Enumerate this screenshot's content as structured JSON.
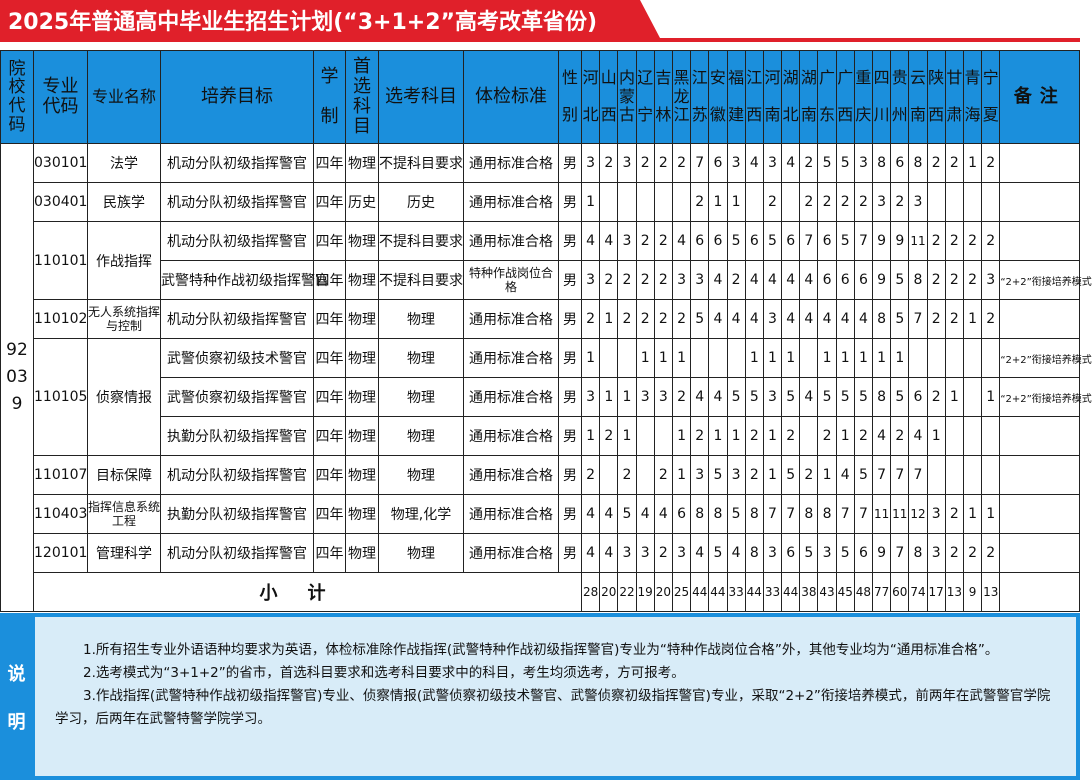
{
  "title": "2025年普通高中毕业生招生计划(“3+1+2”高考改革省份)",
  "colors": {
    "title_red": "#e0202a",
    "header_blue": "#1b8fdc",
    "footer_bg": "#d8ecf8"
  },
  "headers": {
    "school_code": "院校代码",
    "major_code": "专业代码",
    "major_name": "专业名称",
    "goal": "培养目标",
    "years": "学制",
    "first_subject": "首选科目",
    "elective": "选考科目",
    "physical": "体检标准",
    "gender": "性别",
    "provinces": [
      "河北",
      "山西",
      "内蒙古",
      "辽宁",
      "吉林",
      "黑龙江",
      "江苏",
      "安徽",
      "福建",
      "江西",
      "河南",
      "湖北",
      "湖南",
      "广东",
      "广西",
      "重庆",
      "四川",
      "贵州",
      "云南",
      "陕西",
      "甘肃",
      "青海",
      "宁夏"
    ],
    "remark": "备注"
  },
  "school_code": "92039",
  "rows": [
    {
      "code": "030101",
      "name": "法学",
      "span": 1,
      "goal": "机动分队初级指挥警官",
      "years": "四年",
      "first": "物理",
      "elective": "不提科目要求",
      "physical": "通用标准合格",
      "gender": "男",
      "values": [
        "3",
        "2",
        "3",
        "2",
        "2",
        "2",
        "7",
        "6",
        "3",
        "4",
        "3",
        "4",
        "2",
        "5",
        "5",
        "3",
        "8",
        "6",
        "8",
        "2",
        "2",
        "1",
        "2"
      ],
      "remark": ""
    },
    {
      "code": "030401",
      "name": "民族学",
      "span": 1,
      "goal": "机动分队初级指挥警官",
      "years": "四年",
      "first": "历史",
      "elective": "历史",
      "physical": "通用标准合格",
      "gender": "男",
      "values": [
        "1",
        "",
        "",
        "",
        "",
        "",
        "2",
        "1",
        "1",
        "",
        "2",
        "",
        "2",
        "2",
        "2",
        "2",
        "3",
        "2",
        "3",
        "",
        "",
        "",
        ""
      ],
      "remark": ""
    },
    {
      "code": "110101",
      "name": "作战指挥",
      "span": 2,
      "goal": "机动分队初级指挥警官",
      "years": "四年",
      "first": "物理",
      "elective": "不提科目要求",
      "physical": "通用标准合格",
      "gender": "男",
      "values": [
        "4",
        "4",
        "3",
        "2",
        "2",
        "4",
        "6",
        "6",
        "5",
        "6",
        "5",
        "6",
        "7",
        "6",
        "5",
        "7",
        "9",
        "9",
        "11",
        "2",
        "2",
        "2",
        "2"
      ],
      "remark": ""
    },
    {
      "code": "",
      "name": "",
      "span": 0,
      "goal": "武警特种作战初级指挥警官",
      "years": "四年",
      "first": "物理",
      "elective": "不提科目要求",
      "physical": "特种作战岗位合格",
      "gender": "男",
      "values": [
        "3",
        "2",
        "2",
        "2",
        "2",
        "3",
        "3",
        "4",
        "2",
        "4",
        "4",
        "4",
        "4",
        "6",
        "6",
        "6",
        "9",
        "5",
        "8",
        "2",
        "2",
        "2",
        "3"
      ],
      "remark": "“2+2”衔接培养模式"
    },
    {
      "code": "110102",
      "name": "无人系统指挥与控制",
      "span": 1,
      "goal": "机动分队初级指挥警官",
      "years": "四年",
      "first": "物理",
      "elective": "物理",
      "physical": "通用标准合格",
      "gender": "男",
      "values": [
        "2",
        "1",
        "2",
        "2",
        "2",
        "2",
        "5",
        "4",
        "4",
        "4",
        "3",
        "4",
        "4",
        "4",
        "4",
        "4",
        "8",
        "5",
        "7",
        "2",
        "2",
        "1",
        "2"
      ],
      "remark": ""
    },
    {
      "code": "110105",
      "name": "侦察情报",
      "span": 3,
      "goal": "武警侦察初级技术警官",
      "years": "四年",
      "first": "物理",
      "elective": "物理",
      "physical": "通用标准合格",
      "gender": "男",
      "values": [
        "1",
        "",
        "",
        "1",
        "1",
        "1",
        "",
        "",
        "",
        "1",
        "1",
        "1",
        "",
        "1",
        "1",
        "1",
        "1",
        "1",
        "",
        "",
        "",
        "",
        ""
      ],
      "remark": "“2+2”衔接培养模式"
    },
    {
      "code": "",
      "name": "",
      "span": 0,
      "goal": "武警侦察初级指挥警官",
      "years": "四年",
      "first": "物理",
      "elective": "物理",
      "physical": "通用标准合格",
      "gender": "男",
      "values": [
        "3",
        "1",
        "1",
        "3",
        "3",
        "2",
        "4",
        "4",
        "5",
        "5",
        "3",
        "5",
        "4",
        "5",
        "5",
        "5",
        "8",
        "5",
        "6",
        "2",
        "1",
        "",
        "1"
      ],
      "remark": "“2+2”衔接培养模式"
    },
    {
      "code": "",
      "name": "",
      "span": 0,
      "goal": "执勤分队初级指挥警官",
      "years": "四年",
      "first": "物理",
      "elective": "物理",
      "physical": "通用标准合格",
      "gender": "男",
      "values": [
        "1",
        "2",
        "1",
        "",
        "",
        "1",
        "2",
        "1",
        "1",
        "2",
        "1",
        "2",
        "",
        "2",
        "1",
        "2",
        "4",
        "2",
        "4",
        "1",
        "",
        "",
        ""
      ],
      "remark": ""
    },
    {
      "code": "110107",
      "name": "目标保障",
      "span": 1,
      "goal": "机动分队初级指挥警官",
      "years": "四年",
      "first": "物理",
      "elective": "物理",
      "physical": "通用标准合格",
      "gender": "男",
      "values": [
        "2",
        "",
        "2",
        "",
        "2",
        "1",
        "3",
        "5",
        "3",
        "2",
        "1",
        "5",
        "2",
        "1",
        "4",
        "5",
        "7",
        "7",
        "7",
        "",
        "",
        "",
        ""
      ],
      "remark": ""
    },
    {
      "code": "110403",
      "name": "指挥信息系统工程",
      "span": 1,
      "goal": "执勤分队初级指挥警官",
      "years": "四年",
      "first": "物理",
      "elective": "物理,化学",
      "physical": "通用标准合格",
      "gender": "男",
      "values": [
        "4",
        "4",
        "5",
        "4",
        "4",
        "6",
        "8",
        "8",
        "5",
        "8",
        "7",
        "7",
        "8",
        "8",
        "7",
        "7",
        "11",
        "11",
        "12",
        "3",
        "2",
        "1",
        "1"
      ],
      "remark": ""
    },
    {
      "code": "120101",
      "name": "管理科学",
      "span": 1,
      "goal": "机动分队初级指挥警官",
      "years": "四年",
      "first": "物理",
      "elective": "物理",
      "physical": "通用标准合格",
      "gender": "男",
      "values": [
        "4",
        "4",
        "3",
        "3",
        "2",
        "3",
        "4",
        "5",
        "4",
        "8",
        "3",
        "6",
        "5",
        "3",
        "5",
        "6",
        "9",
        "7",
        "8",
        "3",
        "2",
        "2",
        "2"
      ],
      "remark": ""
    }
  ],
  "subtotal": {
    "label": "小计",
    "values": [
      "28",
      "20",
      "22",
      "19",
      "20",
      "25",
      "44",
      "44",
      "33",
      "44",
      "33",
      "44",
      "38",
      "43",
      "45",
      "48",
      "77",
      "60",
      "74",
      "17",
      "13",
      "9",
      "13"
    ]
  },
  "footer": {
    "label": [
      "说",
      "明"
    ],
    "notes": [
      "1.所有招生专业外语语种均要求为英语，体检标准除作战指挥(武警特种作战初级指挥警官)专业为“特种作战岗位合格”外，其他专业均为“通用标准合格”。",
      "2.选考模式为“3+1+2”的省市，首选科目要求和选考科目要求中的科目，考生均须选考，方可报考。",
      "3.作战指挥(武警特种作战初级指挥警官)专业、侦察情报(武警侦察初级技术警官、武警侦察初级指挥警官)专业，采取“2+2”衔接培养模式，前两年在武警警官学院学习，后两年在武警特警学院学习。"
    ]
  }
}
